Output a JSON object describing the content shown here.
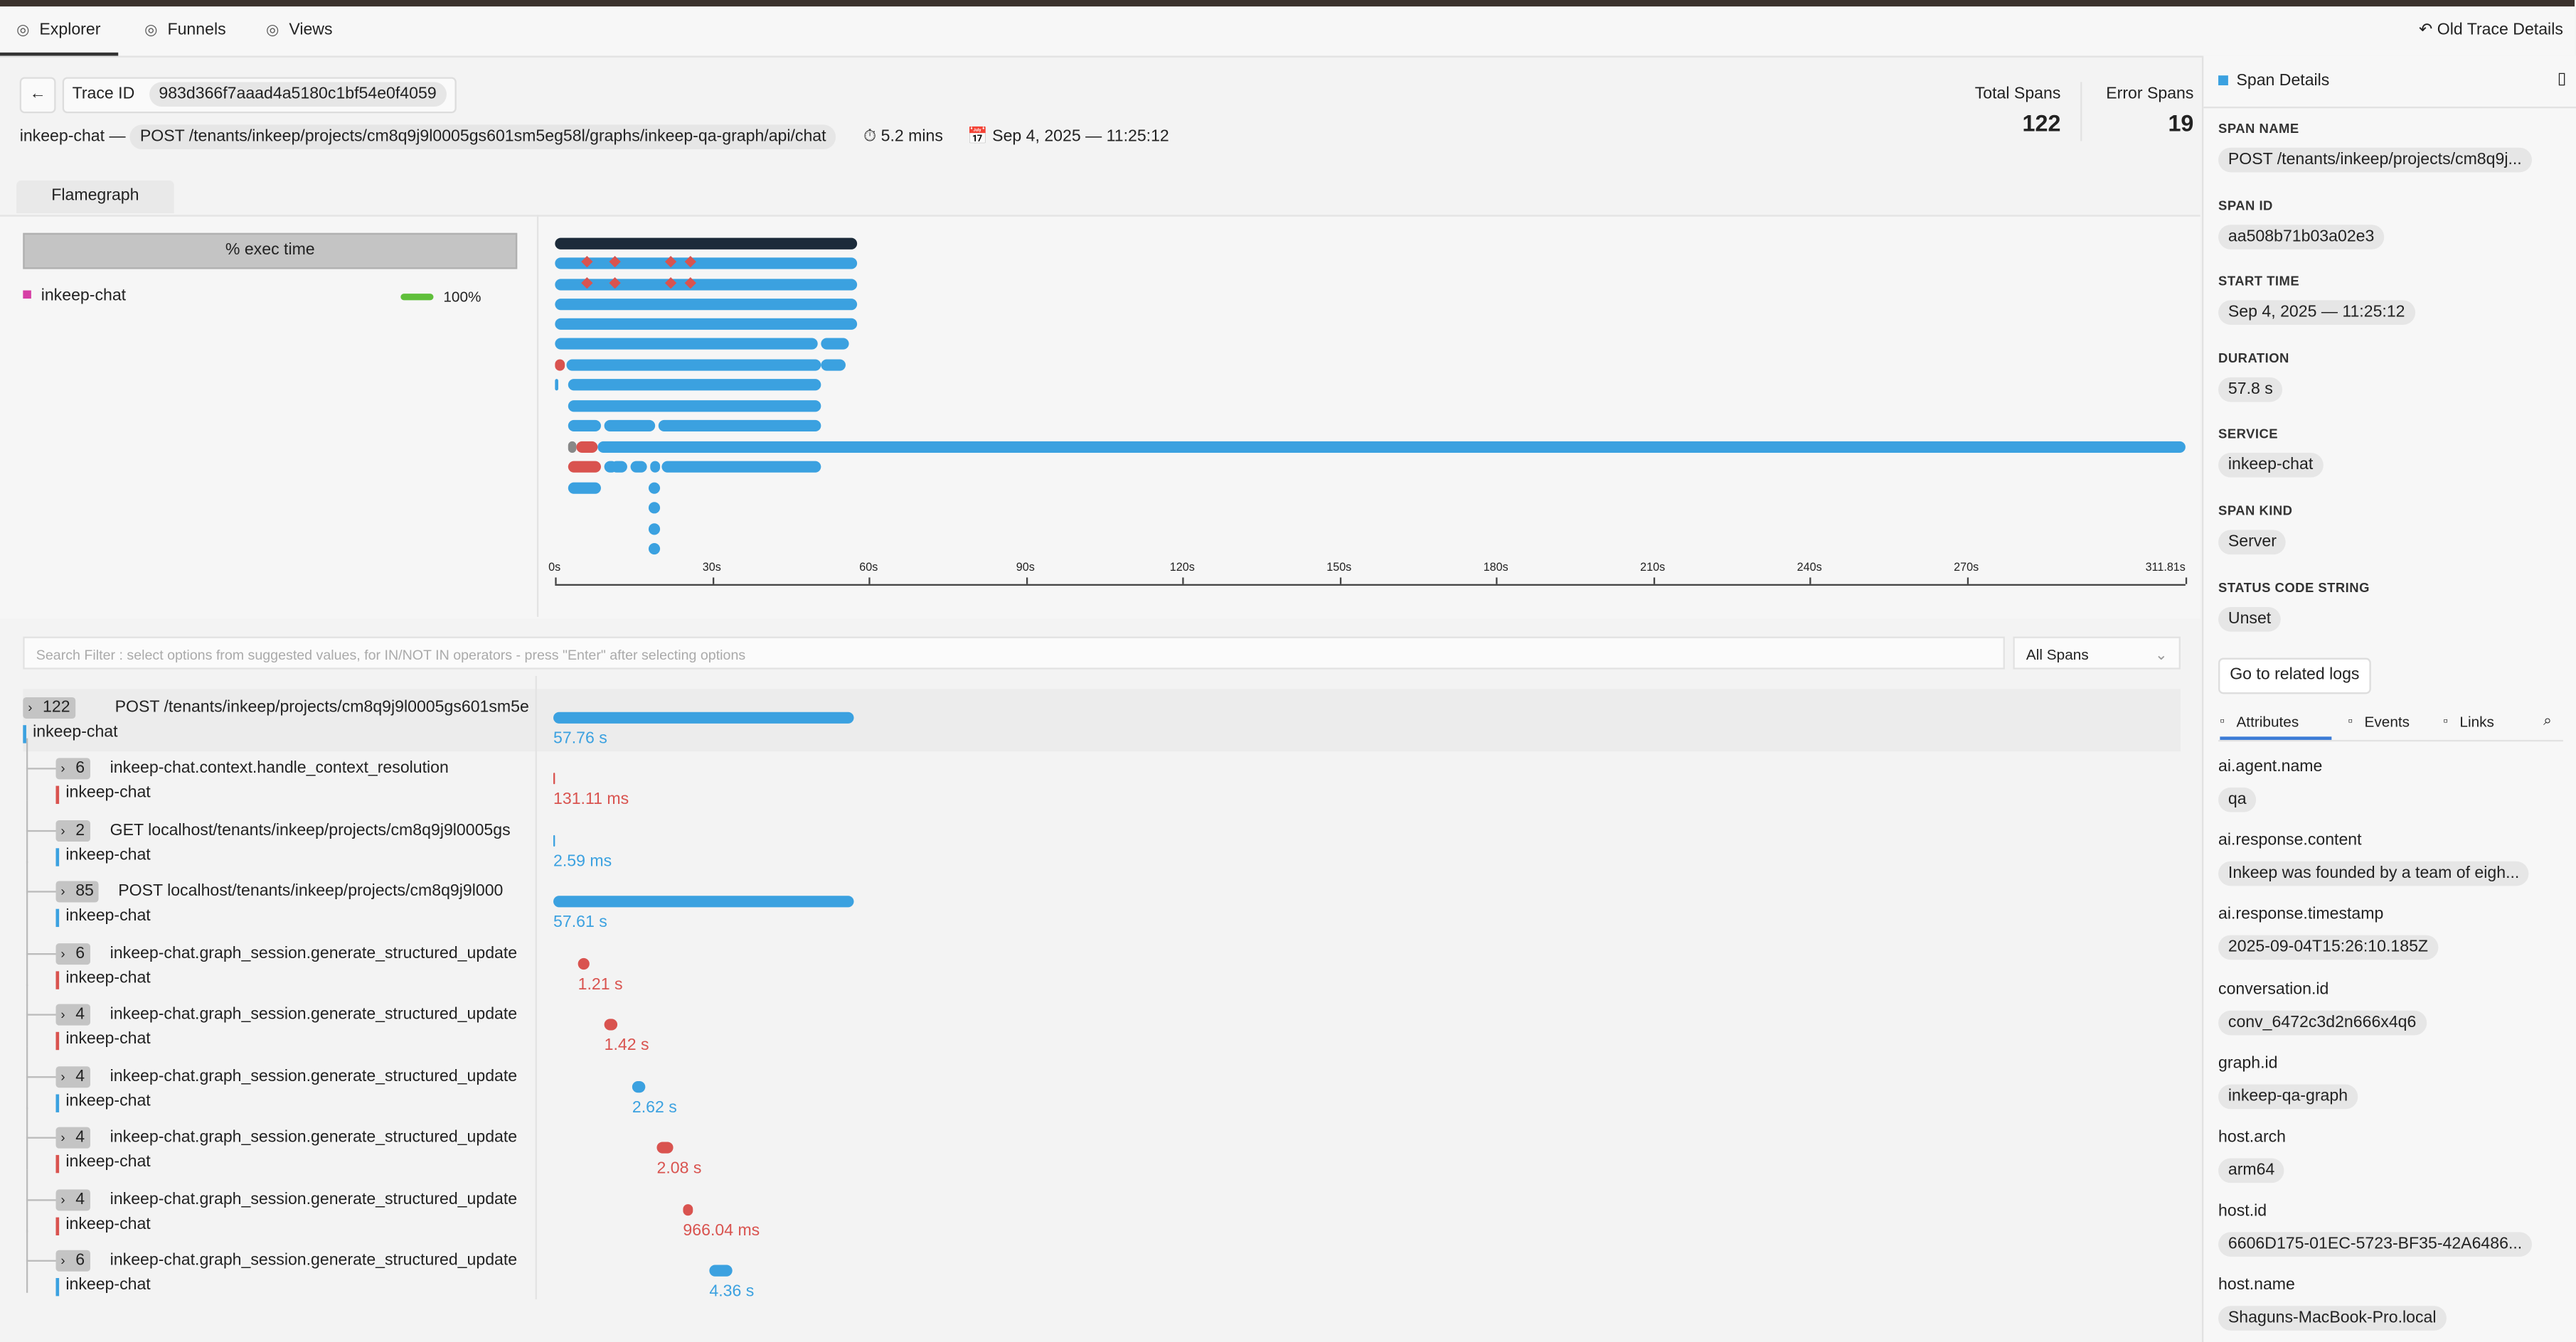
{
  "nav": {
    "tabs": [
      "Explorer",
      "Funnels",
      "Views"
    ],
    "old_trace": "Old Trace Details"
  },
  "trace": {
    "id_label": "Trace ID",
    "id": "983d366f7aaad4a5180c1bf54e0f4059",
    "service": "inkeep-chat",
    "separator": "—",
    "endpoint": "POST /tenants/inkeep/projects/cm8q9j9l0005gs601sm5eg58l/graphs/inkeep-qa-graph/api/chat",
    "duration": "5.2 mins",
    "date": "Sep 4, 2025 — 11:25:12"
  },
  "stats": [
    {
      "label": "Total Spans",
      "value": 122
    },
    {
      "label": "Error Spans",
      "value": 19
    }
  ],
  "flamegraph": {
    "tab": "Flamegraph",
    "exec_header": "% exec time",
    "service": "inkeep-chat",
    "percent": "100%",
    "axis": [
      "0s",
      "30s",
      "60s",
      "90s",
      "120s",
      "150s",
      "180s",
      "210s",
      "240s",
      "270s",
      "311.81s"
    ]
  },
  "filter": {
    "placeholder": "Search Filter : select options from suggested values, for IN/NOT IN operators - press \"Enter\" after selecting options",
    "select": "All Spans"
  },
  "spans": [
    {
      "count": 122,
      "name": "POST /tenants/inkeep/projects/cm8q9j9l0005gs601sm5e",
      "service": "inkeep-chat",
      "duration": "57.76 s",
      "error": false
    },
    {
      "count": 6,
      "name": "inkeep-chat.context.handle_context_resolution",
      "service": "inkeep-chat",
      "duration": "131.11 ms",
      "error": true
    },
    {
      "count": 2,
      "name": "GET localhost/tenants/inkeep/projects/cm8q9j9l0005gs",
      "service": "inkeep-chat",
      "duration": "2.59 ms",
      "error": false
    },
    {
      "count": 85,
      "name": "POST localhost/tenants/inkeep/projects/cm8q9j9l000",
      "service": "inkeep-chat",
      "duration": "57.61 s",
      "error": false
    },
    {
      "count": 6,
      "name": "inkeep-chat.graph_session.generate_structured_update",
      "service": "inkeep-chat",
      "duration": "1.21 s",
      "error": true
    },
    {
      "count": 4,
      "name": "inkeep-chat.graph_session.generate_structured_update",
      "service": "inkeep-chat",
      "duration": "1.42 s",
      "error": true
    },
    {
      "count": 4,
      "name": "inkeep-chat.graph_session.generate_structured_update",
      "service": "inkeep-chat",
      "duration": "2.62 s",
      "error": false
    },
    {
      "count": 4,
      "name": "inkeep-chat.graph_session.generate_structured_update",
      "service": "inkeep-chat",
      "duration": "2.08 s",
      "error": true
    },
    {
      "count": 4,
      "name": "inkeep-chat.graph_session.generate_structured_update",
      "service": "inkeep-chat",
      "duration": "966.04 ms",
      "error": true
    },
    {
      "count": 6,
      "name": "inkeep-chat.graph_session.generate_structured_update",
      "service": "inkeep-chat",
      "duration": "4.36 s",
      "error": false
    }
  ],
  "details": {
    "title": "Span Details",
    "fields": [
      {
        "label": "SPAN NAME",
        "value": "POST /tenants/inkeep/projects/cm8q9j..."
      },
      {
        "label": "SPAN ID",
        "value": "aa508b71b03a02e3"
      },
      {
        "label": "START TIME",
        "value": "Sep 4, 2025 — 11:25:12"
      },
      {
        "label": "DURATION",
        "value": "57.8 s"
      },
      {
        "label": "SERVICE",
        "value": "inkeep-chat"
      },
      {
        "label": "SPAN KIND",
        "value": "Server"
      },
      {
        "label": "STATUS CODE STRING",
        "value": "Unset"
      }
    ],
    "button": "Go to related logs",
    "tabs": [
      "Attributes",
      "Events",
      "Links"
    ],
    "attributes": [
      {
        "key": "ai.agent.name",
        "value": "qa"
      },
      {
        "key": "ai.response.content",
        "value": "Inkeep was founded by a team of eigh..."
      },
      {
        "key": "ai.response.timestamp",
        "value": "2025-09-04T15:26:10.185Z"
      },
      {
        "key": "conversation.id",
        "value": "conv_6472c3d2n666x4q6"
      },
      {
        "key": "graph.id",
        "value": "inkeep-qa-graph"
      },
      {
        "key": "host.arch",
        "value": "arm64"
      },
      {
        "key": "host.id",
        "value": "6606D175-01EC-5723-BF35-42A6486..."
      },
      {
        "key": "host.name",
        "value": "Shaguns-MacBook-Pro.local"
      }
    ]
  }
}
